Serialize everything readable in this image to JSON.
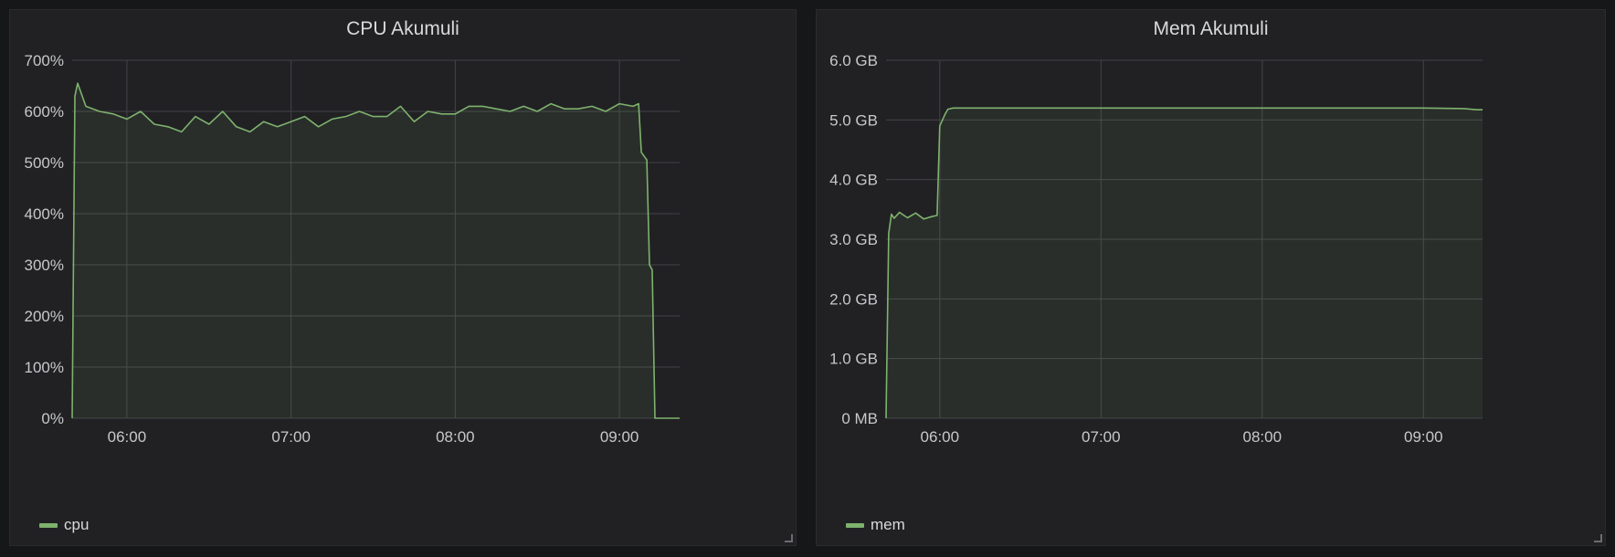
{
  "colors": {
    "series": "#7eb26d",
    "grid": "#444448",
    "fill": "rgba(126,178,109,0.09)"
  },
  "chart_data": [
    {
      "type": "area",
      "title": "CPU Akumuli",
      "xlim": [
        "05:40",
        "09:22"
      ],
      "ylim": [
        0,
        700
      ],
      "y_unit": "%",
      "y_ticks": [
        "0%",
        "100%",
        "200%",
        "300%",
        "400%",
        "500%",
        "600%",
        "700%"
      ],
      "x_ticks": [
        "06:00",
        "07:00",
        "08:00",
        "09:00"
      ],
      "grid": true,
      "legend_position": "bottom-left",
      "series": [
        {
          "name": "cpu",
          "x": [
            "05:40",
            "05:41",
            "05:42",
            "05:45",
            "05:50",
            "05:55",
            "06:00",
            "06:05",
            "06:10",
            "06:15",
            "06:20",
            "06:25",
            "06:30",
            "06:35",
            "06:40",
            "06:45",
            "06:50",
            "06:55",
            "07:00",
            "07:05",
            "07:10",
            "07:15",
            "07:20",
            "07:25",
            "07:30",
            "07:35",
            "07:40",
            "07:45",
            "07:50",
            "07:55",
            "08:00",
            "08:05",
            "08:10",
            "08:15",
            "08:20",
            "08:25",
            "08:30",
            "08:35",
            "08:40",
            "08:45",
            "08:50",
            "08:55",
            "09:00",
            "09:05",
            "09:07",
            "09:08",
            "09:10",
            "09:11",
            "09:12",
            "09:13",
            "09:14",
            "09:16",
            "09:22"
          ],
          "values": [
            0,
            630,
            655,
            610,
            600,
            595,
            585,
            600,
            575,
            570,
            560,
            590,
            575,
            600,
            570,
            560,
            580,
            570,
            580,
            590,
            570,
            585,
            590,
            600,
            590,
            590,
            610,
            580,
            600,
            595,
            595,
            610,
            610,
            605,
            600,
            610,
            600,
            615,
            605,
            605,
            610,
            600,
            615,
            610,
            615,
            520,
            505,
            300,
            290,
            0,
            0,
            0,
            0
          ]
        }
      ]
    },
    {
      "type": "area",
      "title": "Mem Akumuli",
      "xlim": [
        "05:40",
        "09:22"
      ],
      "ylim": [
        0,
        6
      ],
      "y_unit": "GB",
      "y_ticks": [
        "0 MB",
        "1.0 GB",
        "2.0 GB",
        "3.0 GB",
        "4.0 GB",
        "5.0 GB",
        "6.0 GB"
      ],
      "x_ticks": [
        "06:00",
        "07:00",
        "08:00",
        "09:00"
      ],
      "grid": true,
      "legend_position": "bottom-left",
      "series": [
        {
          "name": "mem",
          "x": [
            "05:40",
            "05:41",
            "05:42",
            "05:43",
            "05:45",
            "05:48",
            "05:51",
            "05:54",
            "05:57",
            "05:59",
            "06:00",
            "06:01",
            "06:02",
            "06:03",
            "06:05",
            "06:10",
            "06:30",
            "07:00",
            "08:00",
            "09:00",
            "09:15",
            "09:20",
            "09:22"
          ],
          "values": [
            0,
            3.1,
            3.42,
            3.35,
            3.45,
            3.36,
            3.44,
            3.34,
            3.38,
            3.4,
            4.9,
            5.0,
            5.1,
            5.18,
            5.2,
            5.2,
            5.2,
            5.2,
            5.2,
            5.2,
            5.19,
            5.17,
            5.17
          ]
        }
      ]
    }
  ]
}
